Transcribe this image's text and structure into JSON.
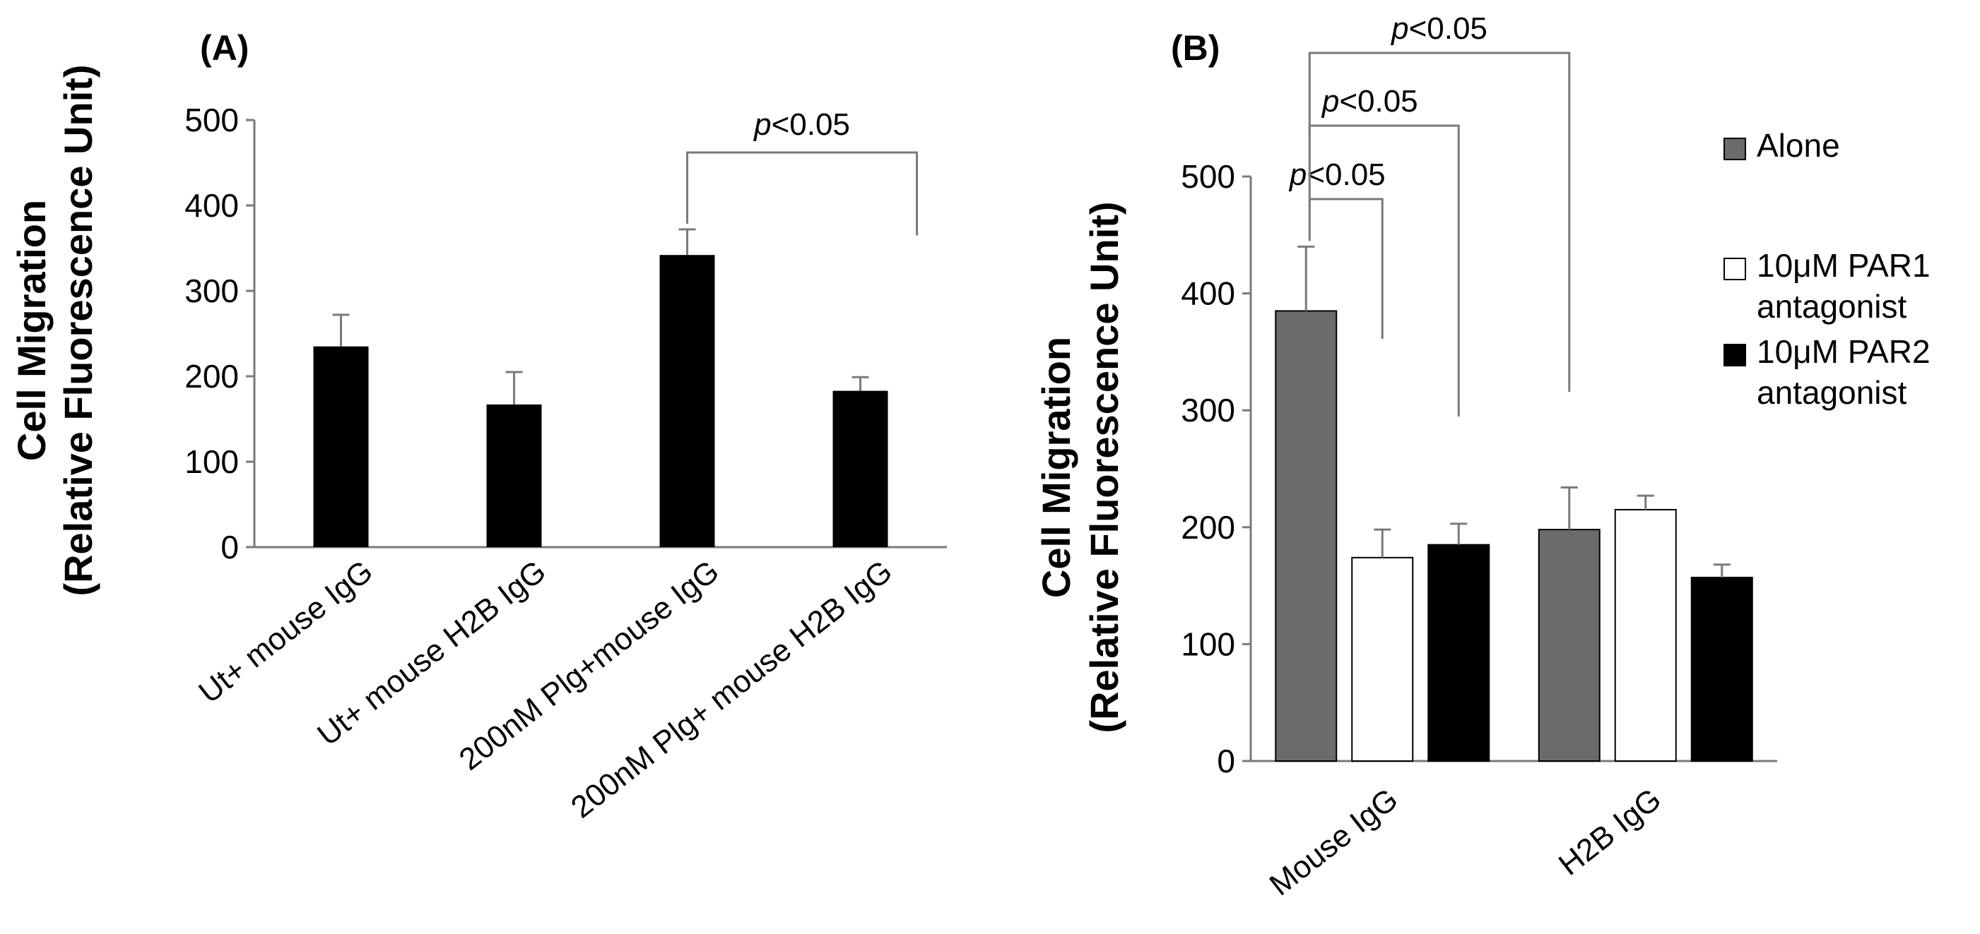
{
  "chart_data": [
    {
      "panel": "(A)",
      "type": "bar",
      "ylabel_line1": "Cell Migration",
      "ylabel_line2": "(Relative Fluorescence Unit)",
      "ylim": [
        0,
        500
      ],
      "yticks": [
        "0",
        "100",
        "200",
        "300",
        "400",
        "500"
      ],
      "categories": [
        "Ut+ mouse IgG",
        "Ut+ mouse H2B IgG",
        "200nM Plg+mouse IgG",
        "200nM Plg+ mouse H2B IgG"
      ],
      "values": [
        235,
        167,
        342,
        183
      ],
      "errors": [
        37,
        38,
        30,
        16
      ],
      "bar_color": "#000000",
      "significance": [
        {
          "from": 2,
          "to": 3,
          "label_italic": "p",
          "label_rest": "<0.05"
        }
      ]
    },
    {
      "panel": "(B)",
      "type": "bar",
      "ylabel_line1": "Cell Migration",
      "ylabel_line2": "(Relative Fluorescence Unit)",
      "ylim": [
        0,
        500
      ],
      "yticks": [
        "0",
        "100",
        "200",
        "300",
        "400",
        "500"
      ],
      "categories": [
        "Mouse IgG",
        "H2B IgG"
      ],
      "series": [
        {
          "name_line1": "Alone",
          "name_line2": "",
          "color": "#6b6b6b",
          "values": [
            385,
            198
          ],
          "errors": [
            55,
            36
          ]
        },
        {
          "name_line1": "10μM PAR1",
          "name_line2": "antagonist",
          "color": "#ffffff",
          "values": [
            174,
            215
          ],
          "errors": [
            24,
            12
          ]
        },
        {
          "name_line1": "10μM PAR2",
          "name_line2": "antagonist",
          "color": "#000000",
          "values": [
            185,
            157
          ],
          "errors": [
            18,
            11
          ]
        }
      ],
      "significance": [
        {
          "label_italic": "p",
          "label_rest": "<0.05",
          "compare": "Mouse IgG Alone vs Mouse IgG PAR1"
        },
        {
          "label_italic": "p",
          "label_rest": "<0.05",
          "compare": "Mouse IgG Alone vs Mouse IgG PAR2"
        },
        {
          "label_italic": "p",
          "label_rest": "<0.05",
          "compare": "Mouse IgG Alone vs H2B IgG Alone"
        }
      ]
    }
  ]
}
